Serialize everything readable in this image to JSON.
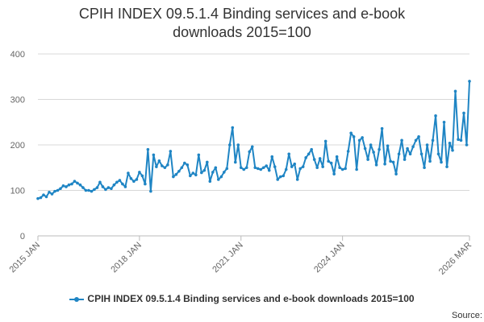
{
  "title_line1": "CPIH INDEX 09.5.1.4 Binding services and e-book",
  "title_line2": "downloads 2015=100",
  "legend_label": "CPIH INDEX 09.5.1.4 Binding services and e-book downloads 2015=100",
  "source_label": "Source:",
  "colors": {
    "series": "#1f85c4",
    "grid": "#d8d8d8",
    "axis": "#bbbbbb"
  },
  "chart_data": {
    "type": "line",
    "title": "CPIH INDEX 09.5.1.4 Binding services and e-book downloads 2015=100",
    "xlabel": "",
    "ylabel": "",
    "ylim": [
      0,
      400
    ],
    "yticks": [
      0,
      100,
      200,
      300,
      400
    ],
    "xticks": [
      "2015 JAN",
      "2018 JAN",
      "2021 JAN",
      "2024 JAN",
      "2026 MAR"
    ],
    "x_start": "2015 JAN",
    "x_end": "2026 MAR",
    "grid": true,
    "legend_position": "bottom",
    "series": [
      {
        "name": "CPIH INDEX 09.5.1.4 Binding services and e-book downloads 2015=100",
        "values": [
          82,
          84,
          90,
          86,
          96,
          92,
          98,
          100,
          104,
          110,
          108,
          112,
          114,
          120,
          116,
          112,
          106,
          100,
          100,
          98,
          102,
          106,
          118,
          108,
          102,
          106,
          104,
          112,
          118,
          122,
          114,
          108,
          138,
          126,
          120,
          124,
          140,
          132,
          114,
          190,
          98,
          178,
          152,
          165,
          154,
          150,
          156,
          186,
          130,
          135,
          142,
          150,
          160,
          156,
          132,
          138,
          134,
          178,
          139,
          144,
          162,
          120,
          140,
          150,
          124,
          130,
          140,
          148,
          200,
          238,
          162,
          200,
          150,
          146,
          150,
          185,
          196,
          150,
          148,
          146,
          150,
          154,
          144,
          174,
          152,
          124,
          130,
          132,
          146,
          180,
          152,
          158,
          124,
          148,
          152,
          172,
          180,
          190,
          168,
          150,
          170,
          152,
          208,
          164,
          160,
          136,
          174,
          150,
          146,
          148,
          186,
          226,
          218,
          146,
          210,
          216,
          192,
          168,
          200,
          184,
          156,
          190,
          236,
          158,
          198,
          164,
          162,
          136,
          180,
          210,
          168,
          192,
          180,
          196,
          210,
          218,
          180,
          150,
          200,
          164,
          210,
          264,
          180,
          162,
          250,
          152,
          204,
          188,
          318,
          212,
          210,
          270,
          200,
          340
        ]
      }
    ]
  }
}
